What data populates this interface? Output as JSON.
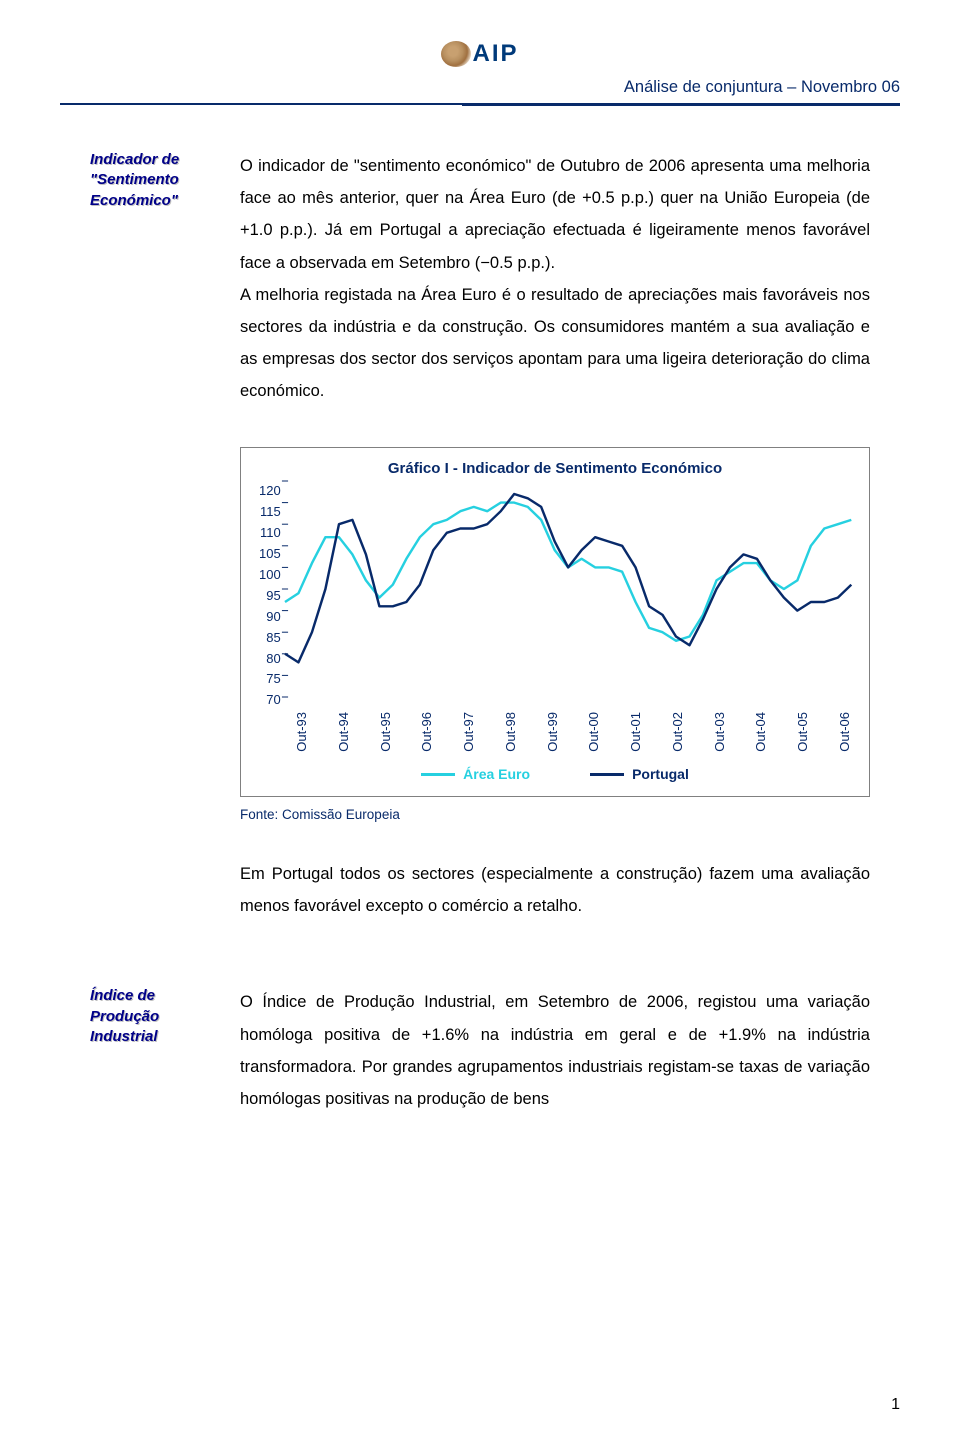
{
  "header": {
    "logo_text": "AIP",
    "doc_title": "Análise de conjuntura – Novembro 06"
  },
  "sidebar1": {
    "line1": "Indicador de",
    "line2": "\"Sentimento",
    "line3": "Económico\""
  },
  "para1": "O indicador de \"sentimento económico\" de Outubro de 2006 apresenta uma melhoria face ao mês anterior, quer na Área Euro (de +0.5 p.p.) quer na União Europeia (de +1.0 p.p.). Já em Portugal a apreciação efectuada é ligeiramente menos favorável face a observada em Setembro (−0.5 p.p.).",
  "para2": "A melhoria registada na Área Euro é o resultado de apreciações mais favoráveis nos sectores da indústria e da construção. Os consumidores mantém a sua avaliação e as empresas dos sector dos serviços apontam para uma ligeira deterioração do clima económico.",
  "chart": {
    "title": "Gráfico I - Indicador de Sentimento Económico",
    "y_ticks": [
      "120",
      "115",
      "110",
      "105",
      "100",
      "95",
      "90",
      "85",
      "80",
      "75",
      "70"
    ],
    "ylim": [
      70,
      120
    ],
    "x_labels": [
      "Out-93",
      "Out-94",
      "Out-95",
      "Out-96",
      "Out-97",
      "Out-98",
      "Out-99",
      "Out-00",
      "Out-01",
      "Out-02",
      "Out-03",
      "Out-04",
      "Out-05",
      "Out-06"
    ],
    "colors": {
      "area_euro": "#26d0e0",
      "portugal": "#082a6a",
      "y_tick_mark": "#082a6a",
      "background": "#ffffff",
      "border": "#808080"
    },
    "line_width": 2.4,
    "series": {
      "area_euro": [
        92,
        94,
        101,
        107,
        107,
        103,
        97,
        93,
        96,
        102,
        107,
        110,
        111,
        113,
        114,
        113,
        115,
        115,
        114,
        111,
        104,
        100,
        102,
        100,
        100,
        99,
        92,
        86,
        85,
        83,
        84,
        89,
        97,
        99,
        101,
        101,
        97,
        95,
        97,
        105,
        109,
        110,
        111
      ],
      "portugal": [
        80,
        78,
        85,
        95,
        110,
        111,
        103,
        91,
        91,
        92,
        96,
        104,
        108,
        109,
        109,
        110,
        113,
        117,
        116,
        114,
        106,
        100,
        104,
        107,
        106,
        105,
        100,
        91,
        89,
        84,
        82,
        88,
        95,
        100,
        103,
        102,
        97,
        93,
        90,
        92,
        92,
        93,
        96
      ]
    },
    "legend": {
      "area_euro_label": "Área Euro",
      "portugal_label": "Portugal"
    }
  },
  "source": "Fonte: Comissão Europeia",
  "para3": "Em Portugal todos os sectores (especialmente a construção) fazem uma avaliação menos favorável excepto o comércio a retalho.",
  "sidebar2": {
    "line1": "Índice de",
    "line2": "Produção",
    "line3": "Industrial"
  },
  "para4": "O Índice de Produção Industrial, em Setembro de 2006, registou uma variação homóloga positiva de +1.6% na indústria em geral e de +1.9% na indústria transformadora. Por grandes agrupamentos industriais registam-se taxas de variação homólogas positivas na produção de bens",
  "page_number": "1"
}
